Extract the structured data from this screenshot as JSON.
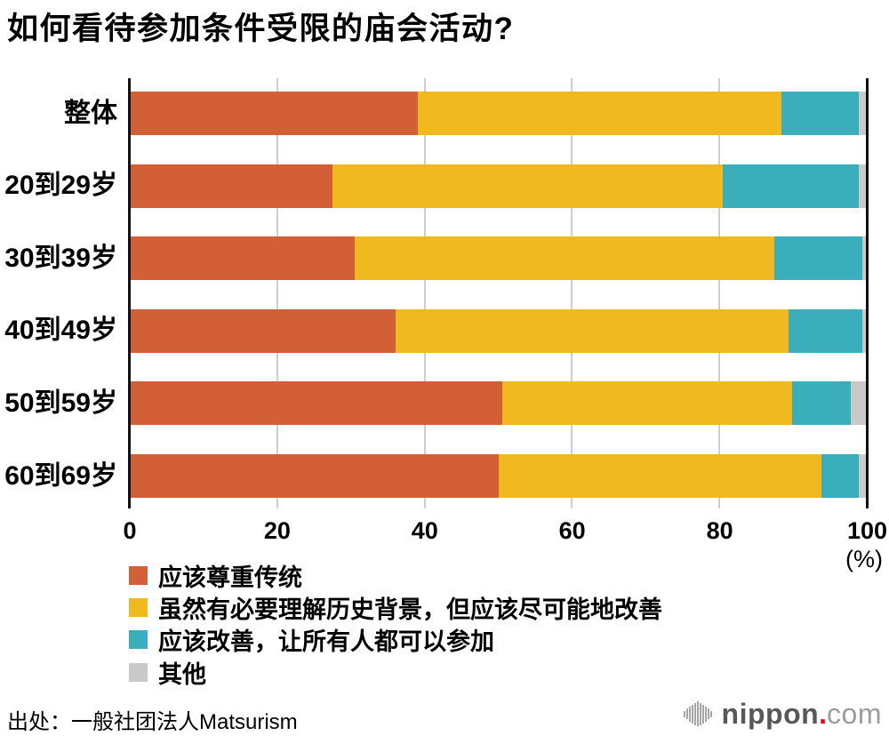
{
  "title": "如何看待参加条件受限的庙会活动?",
  "source": "出处：一般社团法人Matsurism",
  "logo": {
    "brand": "nippon",
    "dot": ".",
    "tld": "com"
  },
  "axis": {
    "ticks": [
      0,
      20,
      40,
      60,
      80,
      100
    ],
    "unit_label": "(%)"
  },
  "colors": {
    "respect_tradition": "#d35f37",
    "understand_but_improve": "#efb91f",
    "improve_for_all": "#3aaebb",
    "other": "#c9c9c9",
    "gridline": "#cfcfcf",
    "axis": "#111111"
  },
  "chart_data": {
    "type": "bar",
    "orientation": "horizontal",
    "stacked": true,
    "title": "如何看待参加条件受限的庙会活动?",
    "categories": [
      "整体",
      "20到29岁",
      "30到39岁",
      "40到49岁",
      "50到59岁",
      "60到69岁"
    ],
    "series": [
      {
        "name": "应该尊重传统",
        "color": "#d35f37",
        "values": [
          39.0,
          27.5,
          30.5,
          36.0,
          50.5,
          50.0
        ]
      },
      {
        "name": "虽然有必要理解历史背景，但应该尽可能地改善",
        "color": "#efb91f",
        "values": [
          49.5,
          53.0,
          57.0,
          53.5,
          39.5,
          44.0
        ]
      },
      {
        "name": "应该改善，让所有人都可以参加",
        "color": "#3aaebb",
        "values": [
          10.5,
          18.5,
          12.0,
          10.0,
          8.0,
          5.0
        ]
      },
      {
        "name": "其他",
        "color": "#c9c9c9",
        "values": [
          1.0,
          1.0,
          0.5,
          0.5,
          2.0,
          1.0
        ]
      }
    ],
    "xlim": [
      0,
      100
    ],
    "x_unit": "(%)",
    "grid": "vertical",
    "legend_position": "bottom-left"
  }
}
